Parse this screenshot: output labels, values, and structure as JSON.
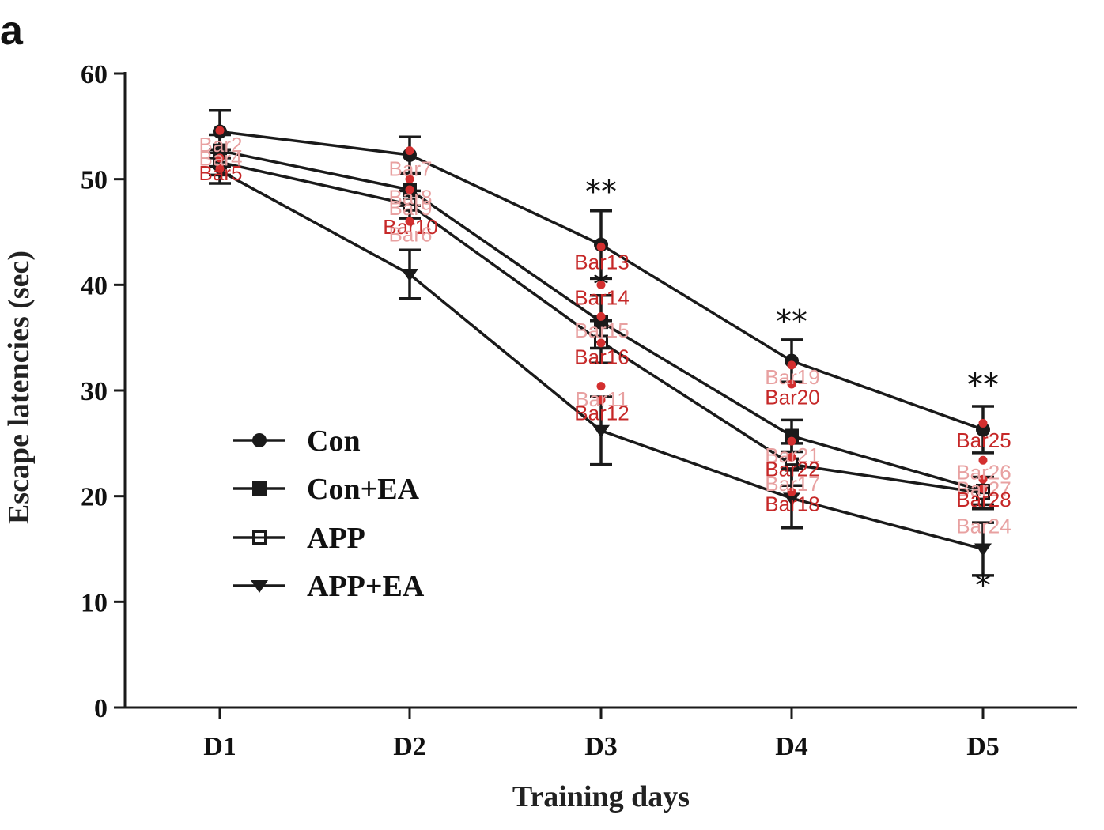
{
  "panel_label": "a",
  "chart_data": {
    "type": "line",
    "title": "",
    "xlabel": "Training days",
    "ylabel": "Escape latencies (sec)",
    "categories": [
      "D1",
      "D2",
      "D3",
      "D4",
      "D5"
    ],
    "ylim": [
      0,
      60
    ],
    "yticks": [
      0,
      10,
      20,
      30,
      40,
      50,
      60
    ],
    "grid": false,
    "legend_position": "lower-left",
    "series": [
      {
        "name": "Con",
        "marker": "circle",
        "values": [
          54.5,
          52.3,
          43.8,
          32.8,
          26.3
        ],
        "errors": [
          2.0,
          1.7,
          3.2,
          2.0,
          2.2
        ]
      },
      {
        "name": "Con+EA",
        "marker": "square",
        "values": [
          52.7,
          49.0,
          36.5,
          25.7,
          20.5
        ],
        "errors": [
          1.5,
          1.5,
          2.5,
          1.5,
          1.3
        ]
      },
      {
        "name": "APP",
        "marker": "open-square",
        "values": [
          51.6,
          47.6,
          34.6,
          23.0,
          20.3
        ],
        "errors": [
          1.2,
          1.3,
          2.0,
          2.0,
          1.5
        ]
      },
      {
        "name": "APP+EA",
        "marker": "triangle-down",
        "values": [
          50.8,
          41.0,
          26.2,
          19.8,
          15.0
        ],
        "errors": [
          1.2,
          2.3,
          3.2,
          2.8,
          2.5
        ]
      }
    ],
    "significance": [
      {
        "category": "D3",
        "text": "**",
        "y": 47.8
      },
      {
        "category": "D3",
        "text": "*",
        "y": 39.0
      },
      {
        "category": "D4",
        "text": "**",
        "y": 35.5
      },
      {
        "category": "D5",
        "text": "**",
        "y": 29.5
      },
      {
        "category": "D5",
        "text": "*",
        "y": 10.5
      }
    ],
    "point_labels": [
      {
        "text": "Bar2",
        "x": "D1",
        "y": 52.6,
        "color": "#e8a1a1"
      },
      {
        "text": "Bar4",
        "x": "D1",
        "y": 51.3,
        "color": "#e8a1a1"
      },
      {
        "text": "Bar5",
        "x": "D1",
        "y": 49.9,
        "color": "#c62828"
      },
      {
        "text": "Bar7",
        "x": "D2",
        "y": 50.3,
        "color": "#e8a1a1"
      },
      {
        "text": "Bar8",
        "x": "D2",
        "y": 47.6,
        "color": "#e8a1a1"
      },
      {
        "text": "Bar9",
        "x": "D2",
        "y": 46.6,
        "color": "#e8a1a1"
      },
      {
        "text": "Bar10",
        "x": "D2",
        "y": 44.8,
        "color": "#c62828"
      },
      {
        "text": "Bar6",
        "x": "D2",
        "y": 44.1,
        "color": "#e8a1a1"
      },
      {
        "text": "Bar13",
        "x": "D3",
        "y": 41.5,
        "color": "#c62828"
      },
      {
        "text": "Bar14",
        "x": "D3",
        "y": 38.1,
        "color": "#c62828"
      },
      {
        "text": "Bar15",
        "x": "D3",
        "y": 35.0,
        "color": "#e8a1a1"
      },
      {
        "text": "Bar16",
        "x": "D3",
        "y": 32.5,
        "color": "#c62828"
      },
      {
        "text": "Bar11",
        "x": "D3",
        "y": 28.5,
        "color": "#e8a1a1"
      },
      {
        "text": "Bar12",
        "x": "D3",
        "y": 27.2,
        "color": "#c62828"
      },
      {
        "text": "Bar19",
        "x": "D4",
        "y": 30.6,
        "color": "#e8a1a1"
      },
      {
        "text": "Bar20",
        "x": "D4",
        "y": 28.7,
        "color": "#c62828"
      },
      {
        "text": "Bar21",
        "x": "D4",
        "y": 23.2,
        "color": "#e8a1a1"
      },
      {
        "text": "Bar22",
        "x": "D4",
        "y": 21.9,
        "color": "#c62828"
      },
      {
        "text": "Bar17",
        "x": "D4",
        "y": 20.5,
        "color": "#e8a1a1"
      },
      {
        "text": "Bar18",
        "x": "D4",
        "y": 18.6,
        "color": "#c62828"
      },
      {
        "text": "Bar25",
        "x": "D5",
        "y": 24.6,
        "color": "#c62828"
      },
      {
        "text": "Bar26",
        "x": "D5",
        "y": 21.6,
        "color": "#e8a1a1"
      },
      {
        "text": "Bar27",
        "x": "D5",
        "y": 20.0,
        "color": "#e8a1a1"
      },
      {
        "text": "Bar28",
        "x": "D5",
        "y": 19.0,
        "color": "#c62828"
      },
      {
        "text": "Bar24",
        "x": "D5",
        "y": 16.5,
        "color": "#e8a1a1"
      }
    ],
    "point_dots": [
      {
        "x": "D1",
        "y": 54.6
      },
      {
        "x": "D1",
        "y": 52.0
      },
      {
        "x": "D1",
        "y": 51.0
      },
      {
        "x": "D2",
        "y": 52.7
      },
      {
        "x": "D2",
        "y": 50.0
      },
      {
        "x": "D2",
        "y": 49.0
      },
      {
        "x": "D2",
        "y": 46.0
      },
      {
        "x": "D3",
        "y": 43.6
      },
      {
        "x": "D3",
        "y": 40.0
      },
      {
        "x": "D3",
        "y": 37.0
      },
      {
        "x": "D3",
        "y": 34.5
      },
      {
        "x": "D3",
        "y": 30.4
      },
      {
        "x": "D3",
        "y": 29.1
      },
      {
        "x": "D4",
        "y": 32.4
      },
      {
        "x": "D4",
        "y": 30.6
      },
      {
        "x": "D4",
        "y": 25.2
      },
      {
        "x": "D4",
        "y": 23.7
      },
      {
        "x": "D4",
        "y": 20.4
      },
      {
        "x": "D5",
        "y": 26.9
      },
      {
        "x": "D5",
        "y": 23.4
      },
      {
        "x": "D5",
        "y": 21.6
      },
      {
        "x": "D5",
        "y": 20.7
      }
    ]
  },
  "colors": {
    "line": "#1a1a1a",
    "dot": "#d32f2f",
    "label_strong": "#c62828",
    "label_faint": "#e8a1a1"
  }
}
